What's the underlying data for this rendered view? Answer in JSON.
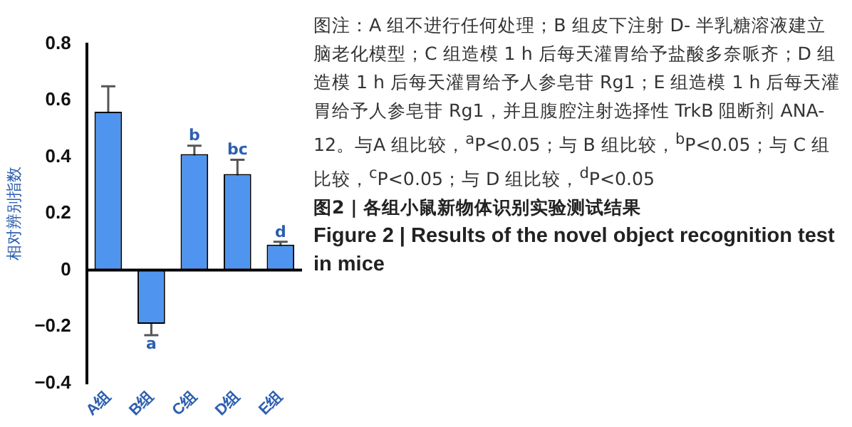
{
  "chart_data": {
    "type": "bar",
    "title": "图2 | 各组小鼠新物体识别实验测试结果",
    "subtitle": "Figure 2 | Results of the novel object recognition test in mice",
    "ylabel": "相对辨别指数",
    "categories": [
      "A组",
      "B组",
      "C组",
      "D组",
      "E组"
    ],
    "values": [
      0.56,
      -0.19,
      0.41,
      0.34,
      0.09
    ],
    "errors": [
      0.09,
      0.04,
      0.03,
      0.05,
      0.01
    ],
    "color": "#4f95ef",
    "ylim": [
      -0.4,
      0.8
    ],
    "yticks": [
      -0.4,
      -0.2,
      0,
      0.2,
      0.4,
      0.6,
      0.8
    ],
    "grid": false,
    "legend": false,
    "ref_lines": [
      {
        "axis": "y",
        "value": 0,
        "color": "#000000"
      }
    ],
    "annotations": [
      {
        "text": "a",
        "x": "B组",
        "y": -0.23
      },
      {
        "text": "b",
        "x": "C组",
        "y": 0.44
      },
      {
        "text": "bc",
        "x": "D组",
        "y": 0.39
      },
      {
        "text": "d",
        "x": "E组",
        "y": 0.1
      },
      "图注：A 组不进行任何处理；B 组皮下注射 D- 半乳糖溶液建立脑老化模型；C 组造模 1 h 后每天灌胃给予盐酸多奈哌齐；D 组造模 1 h 后每天灌胃给予人参皂苷 Rg1；E 组造模 1 h 后每天灌胃给予人参皂苷 Rg1，并且腹腔注射选择性 TrkB 阻断剂 ANA-12。与A 组比较，$^{a}$P<0.05；与 B 组比较，$^{b}$P<0.05；与 C 组比较，$^{c}$P<0.05；与 D 组比较，$^{d}$P<0.05"
    ]
  }
}
